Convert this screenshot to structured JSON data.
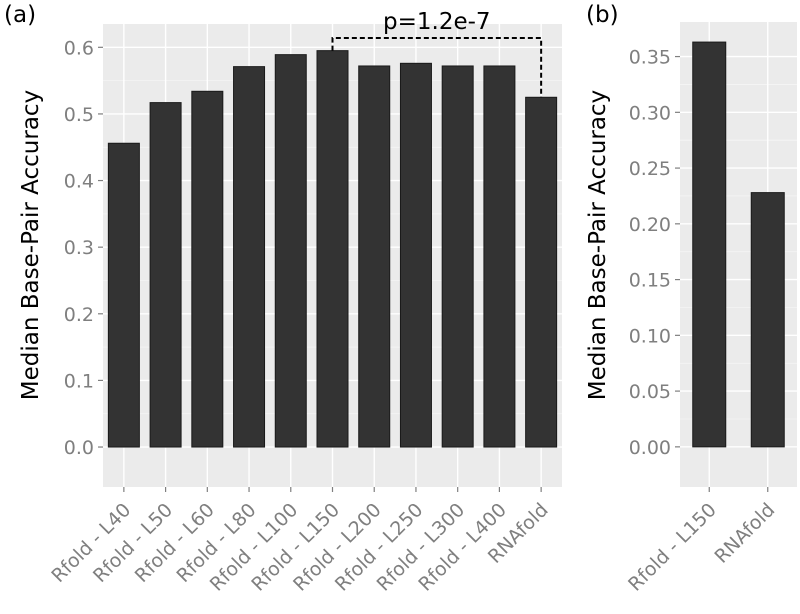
{
  "chart_data": [
    {
      "type": "bar",
      "panel_label": "(a)",
      "categories": [
        "Rfold - L40",
        "Rfold - L50",
        "Rfold - L60",
        "Rfold - L80",
        "Rfold - L100",
        "Rfold - L150",
        "Rfold - L200",
        "Rfold - L250",
        "Rfold - L300",
        "Rfold - L400",
        "RNAfold"
      ],
      "values": [
        0.456,
        0.517,
        0.534,
        0.571,
        0.589,
        0.595,
        0.572,
        0.576,
        0.572,
        0.572,
        0.525
      ],
      "ylabel": "Median Base-Pair Accuracy",
      "xlabel": "",
      "ylim": [
        -0.06,
        0.635
      ],
      "yticks": [
        0.0,
        0.1,
        0.2,
        0.3,
        0.4,
        0.5,
        0.6
      ],
      "ytick_labels": [
        "0.0",
        "0.1",
        "0.2",
        "0.3",
        "0.4",
        "0.5",
        "0.6"
      ],
      "grid": true,
      "annotation": {
        "text": "p=1.2e-7",
        "from_category": "Rfold - L150",
        "to_category": "RNAfold",
        "level": 0.614
      }
    },
    {
      "type": "bar",
      "panel_label": "(b)",
      "categories": [
        "Rfold - L150",
        "RNAfold"
      ],
      "values": [
        0.363,
        0.228
      ],
      "ylabel": "Median Base-Pair Accuracy",
      "xlabel": "",
      "ylim": [
        -0.036,
        0.381
      ],
      "yticks": [
        0.0,
        0.05,
        0.1,
        0.15,
        0.2,
        0.25,
        0.3,
        0.35
      ],
      "ytick_labels": [
        "0.00",
        "0.05",
        "0.10",
        "0.15",
        "0.20",
        "0.25",
        "0.30",
        "0.35"
      ],
      "grid": true
    }
  ]
}
